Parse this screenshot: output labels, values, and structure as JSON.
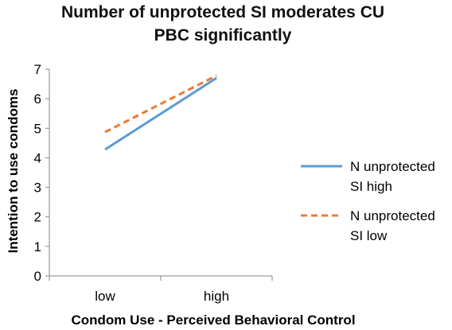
{
  "chart_data": {
    "type": "line",
    "title_lines": [
      "Number of unprotected SI moderates CU",
      "PBC significantly"
    ],
    "xlabel": "Condom Use - Perceived Behavioral Control",
    "ylabel": "Intention to use condoms",
    "categories": [
      "low",
      "high"
    ],
    "ylim": [
      0,
      7
    ],
    "yticks": [
      "0",
      "1",
      "2",
      "3",
      "4",
      "5",
      "6",
      "7"
    ],
    "grid": false,
    "legend_position": "right",
    "series": [
      {
        "name_lines": [
          "N unprotected",
          "SI high"
        ],
        "values": [
          4.28,
          6.7
        ],
        "color": "#5B9BD5",
        "dash": "solid"
      },
      {
        "name_lines": [
          "N unprotected",
          "SI low"
        ],
        "values": [
          4.87,
          6.78
        ],
        "color": "#ED7D31",
        "dash": "dashed"
      }
    ]
  }
}
